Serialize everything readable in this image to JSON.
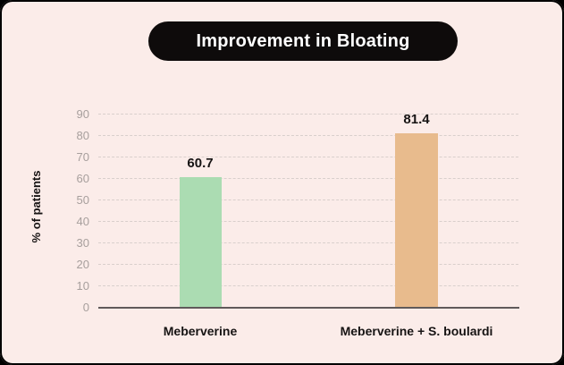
{
  "header": {
    "title": "Improvement in Bloating"
  },
  "chart_data": {
    "type": "bar",
    "title": "Improvement in Bloating",
    "categories": [
      "Meberverine",
      "Meberverine + S. boulardi"
    ],
    "values": [
      60.7,
      81.4
    ],
    "value_labels": [
      "60.7",
      "81.4"
    ],
    "bar_colors": [
      "#abdcb2",
      "#e8bb8d"
    ],
    "xlabel": "",
    "ylabel": "% of patients",
    "ylim": [
      0,
      90
    ],
    "yticks": [
      0,
      10,
      20,
      30,
      40,
      50,
      60,
      70,
      80,
      90
    ],
    "grid": "horizontal-dashed",
    "legend_position": "none"
  },
  "colors": {
    "page_background": "#fbece9",
    "outer_frame": "#000000",
    "title_pill_bg": "#0e0b0b",
    "title_text": "#ffffff",
    "bar_green": "#abdcb2",
    "bar_orange": "#e8bb8d",
    "axis_line": "#5f5a5a",
    "gridline": "#d9cfcc",
    "tick_text": "#a79f9d",
    "label_text": "#161313"
  }
}
